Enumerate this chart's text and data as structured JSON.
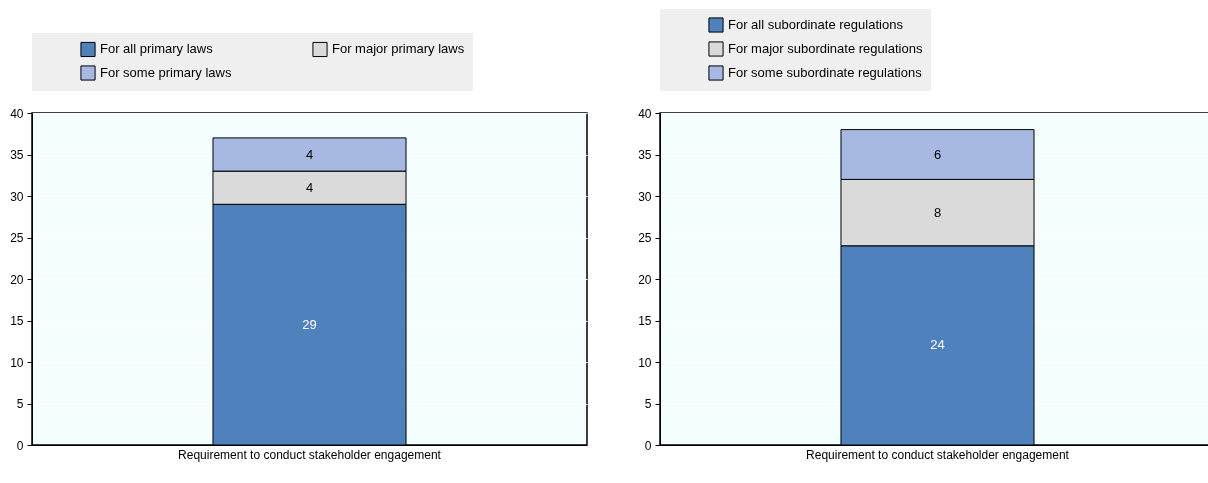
{
  "chart_data": [
    {
      "type": "bar",
      "stacked": true,
      "categories": [
        "Requirement to conduct stakeholder engagement"
      ],
      "series": [
        {
          "name": "For all primary laws",
          "color": "#4f81bd",
          "values": [
            29
          ]
        },
        {
          "name": "For major primary laws",
          "color": "#dadada",
          "values": [
            4
          ]
        },
        {
          "name": "For some primary laws",
          "color": "#a7b9e3",
          "values": [
            4
          ]
        }
      ],
      "ylim": [
        0,
        40
      ],
      "yticks": [
        0,
        5,
        10,
        15,
        20,
        25,
        30,
        35,
        40
      ],
      "grid": "y",
      "legend": "top",
      "data_labels": true
    },
    {
      "type": "bar",
      "stacked": true,
      "categories": [
        "Requirement to conduct stakeholder engagement"
      ],
      "series": [
        {
          "name": "For all subordinate regulations",
          "color": "#4f81bd",
          "values": [
            24
          ]
        },
        {
          "name": "For major subordinate regulations",
          "color": "#dadada",
          "values": [
            8
          ]
        },
        {
          "name": "For some subordinate regulations",
          "color": "#a7b9e3",
          "values": [
            6
          ]
        }
      ],
      "ylim": [
        0,
        40
      ],
      "yticks": [
        0,
        5,
        10,
        15,
        20,
        25,
        30,
        35,
        40
      ],
      "grid": "y",
      "legend": "top",
      "data_labels": true
    }
  ]
}
